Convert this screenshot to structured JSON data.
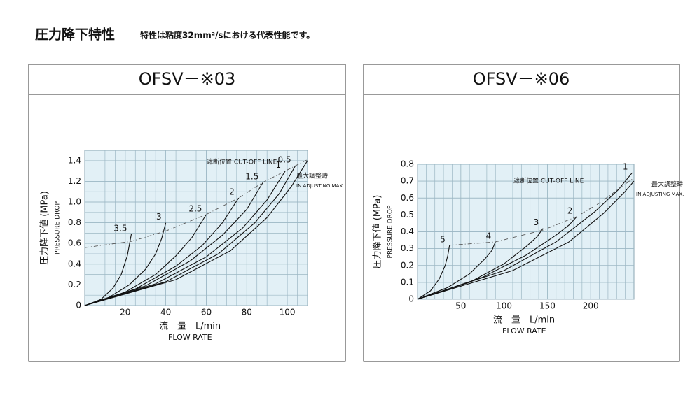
{
  "header": {
    "title": "圧力降下特性",
    "subtitle": "特性は粘度32mm²/sにおける代表性能です。"
  },
  "chart_data": [
    {
      "type": "line",
      "title": "OFSV－※03",
      "xlabel": "流　量　L/min",
      "xlabel_en": "FLOW RATE",
      "ylabel": "圧力降下値 (MPa)",
      "ylabel_en": "PRESSURE DROP",
      "xlim": [
        0,
        110
      ],
      "ylim": [
        0,
        1.5
      ],
      "xticks": [
        20,
        40,
        60,
        80,
        100
      ],
      "yticks": [
        0,
        0.2,
        0.4,
        0.6,
        0.8,
        {
          "value": 1,
          "label": "1.0"
        },
        1.2,
        1.4
      ],
      "grid": true,
      "series": [
        {
          "name": "3.5",
          "color": "#111",
          "x": [
            0,
            8,
            14,
            18,
            21,
            23
          ],
          "values": [
            0,
            0.06,
            0.17,
            0.3,
            0.48,
            0.69
          ]
        },
        {
          "name": "3",
          "color": "#111",
          "x": [
            0,
            12,
            22,
            30,
            35,
            38,
            40
          ],
          "values": [
            0,
            0.08,
            0.2,
            0.35,
            0.5,
            0.65,
            0.8
          ]
        },
        {
          "name": "2.5",
          "color": "#111",
          "x": [
            0,
            20,
            35,
            45,
            53,
            60
          ],
          "values": [
            0,
            0.13,
            0.3,
            0.48,
            0.66,
            0.88
          ]
        },
        {
          "name": "2",
          "color": "#111",
          "x": [
            0,
            25,
            45,
            58,
            68,
            76
          ],
          "values": [
            0,
            0.16,
            0.38,
            0.58,
            0.8,
            1.04
          ]
        },
        {
          "name": "1.5",
          "color": "#111",
          "x": [
            0,
            30,
            52,
            68,
            80,
            88
          ],
          "values": [
            0,
            0.19,
            0.43,
            0.68,
            0.93,
            1.19
          ]
        },
        {
          "name": "1",
          "color": "#111",
          "x": [
            0,
            35,
            60,
            78,
            90,
            99
          ],
          "values": [
            0,
            0.21,
            0.47,
            0.75,
            1.02,
            1.3
          ]
        },
        {
          "name": "0.5",
          "color": "#111",
          "x": [
            0,
            40,
            66,
            84,
            96,
            104
          ],
          "values": [
            0,
            0.23,
            0.5,
            0.8,
            1.08,
            1.35
          ]
        },
        {
          "name": "最大調整時",
          "name_en": "IN ADJUSTING MAX.",
          "color": "#111",
          "x": [
            0,
            45,
            72,
            90,
            102,
            110
          ],
          "values": [
            0,
            0.25,
            0.53,
            0.85,
            1.15,
            1.4
          ]
        },
        {
          "name": "遮断位置 CUT-OFF LINE",
          "color": "#555",
          "dashed": true,
          "x": [
            0,
            23,
            40,
            60,
            76,
            88,
            99,
            110
          ],
          "values": [
            0.56,
            0.62,
            0.72,
            0.88,
            1.04,
            1.19,
            1.3,
            1.41
          ]
        }
      ]
    },
    {
      "type": "line",
      "title": "OFSV－※06",
      "xlabel": "流　量　L/min",
      "xlabel_en": "FLOW RATE",
      "ylabel": "圧力降下値 (MPa)",
      "ylabel_en": "PRESSURE DROP",
      "xlim": [
        0,
        250
      ],
      "ylim": [
        0,
        0.8
      ],
      "xticks": [
        50,
        100,
        150,
        200
      ],
      "yticks": [
        0,
        0.1,
        0.2,
        0.3,
        0.4,
        0.5,
        0.6,
        0.7,
        0.8
      ],
      "grid": true,
      "series": [
        {
          "name": "5",
          "color": "#111",
          "x": [
            0,
            15,
            25,
            32,
            35,
            37
          ],
          "values": [
            0,
            0.05,
            0.12,
            0.2,
            0.26,
            0.32
          ]
        },
        {
          "name": "4",
          "color": "#111",
          "x": [
            0,
            35,
            60,
            78,
            86,
            90
          ],
          "values": [
            0,
            0.07,
            0.15,
            0.24,
            0.29,
            0.34
          ]
        },
        {
          "name": "3",
          "color": "#111",
          "x": [
            0,
            60,
            100,
            125,
            138,
            145
          ],
          "values": [
            0,
            0.1,
            0.21,
            0.31,
            0.37,
            0.42
          ]
        },
        {
          "name": "2",
          "color": "#111",
          "x": [
            0,
            75,
            125,
            160,
            175,
            184
          ],
          "values": [
            0,
            0.13,
            0.26,
            0.38,
            0.44,
            0.49
          ]
        },
        {
          "name": "1",
          "color": "#111",
          "x": [
            0,
            100,
            160,
            205,
            232,
            248
          ],
          "values": [
            0,
            0.17,
            0.34,
            0.52,
            0.65,
            0.75
          ]
        },
        {
          "name": "最大調整時",
          "name_en": "IN ADJUSTING MAX.",
          "color": "#111",
          "x": [
            0,
            110,
            175,
            215,
            240,
            250
          ],
          "values": [
            0,
            0.17,
            0.34,
            0.51,
            0.64,
            0.7
          ]
        },
        {
          "name": "遮断位置 CUT-OFF LINE",
          "color": "#555",
          "dashed": true,
          "x": [
            37,
            90,
            145,
            184,
            210,
            250
          ],
          "values": [
            0.32,
            0.34,
            0.41,
            0.49,
            0.57,
            0.72
          ]
        }
      ]
    }
  ]
}
